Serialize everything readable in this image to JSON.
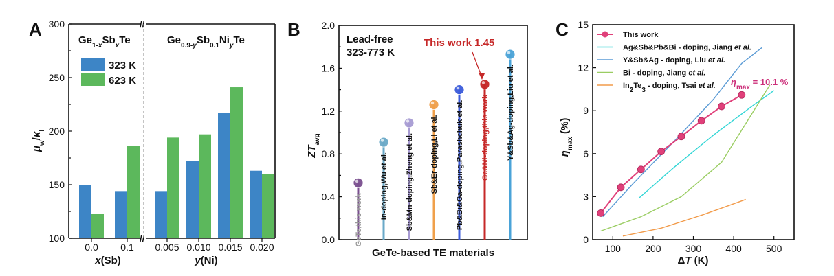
{
  "chart_data": [
    {
      "panel": "A",
      "type": "bar",
      "ylabel": "μw/κl",
      "ylim": [
        100,
        300
      ],
      "yticks": [
        100,
        150,
        200,
        250,
        300
      ],
      "group_titles": [
        "Ge1-xSbxTe",
        "Ge0.9-ySb0.1NiyTe"
      ],
      "xlabels": [
        "x(Sb)",
        "y(Ni)"
      ],
      "categories": [
        "0.0",
        "0.1",
        "0.005",
        "0.010",
        "0.015",
        "0.020"
      ],
      "series": [
        {
          "name": "323 K",
          "color": "#3d85c6",
          "values": [
            150,
            144,
            144,
            172,
            217,
            163
          ]
        },
        {
          "name": "623 K",
          "color": "#5cb85c",
          "values": [
            123,
            186,
            194,
            197,
            241,
            160
          ]
        }
      ]
    },
    {
      "panel": "B",
      "type": "bar",
      "ylabel": "ZTavg",
      "xlabel": "GeTe-based TE materials",
      "ylim": [
        0,
        2.0
      ],
      "yticks": [
        "0.0",
        "0.4",
        "0.8",
        "1.2",
        "1.6",
        "2.0"
      ],
      "annotation_left": [
        "Lead-free",
        "323-773 K"
      ],
      "highlight": "This work 1.45",
      "items": [
        {
          "label": "GeTe,this work",
          "value": 0.53,
          "color": "#7a4f8f",
          "label_color": "#999999"
        },
        {
          "label": "In-doping,Wu et al.",
          "value": 0.91,
          "color": "#6aa9c8",
          "label_color": "#111111"
        },
        {
          "label": "Sb&Mn-doping,Zheng et al.",
          "value": 1.09,
          "color": "#a79bd3",
          "label_color": "#111111"
        },
        {
          "label": "Sb&Er-doping,Li et al.",
          "value": 1.26,
          "color": "#f0a04b",
          "label_color": "#111111"
        },
        {
          "label": "Pb&Bi&Ga-doping,Parashchuk et al.",
          "value": 1.4,
          "color": "#3b5bdb",
          "label_color": "#111111"
        },
        {
          "label": "Ge&Ni-doping,this work",
          "value": 1.45,
          "color": "#c62828",
          "label_color": "#c62828"
        },
        {
          "label": "Y&Sb&Ag-doping,Liu et al.",
          "value": 1.73,
          "color": "#4aa3d8",
          "label_color": "#111111"
        }
      ]
    },
    {
      "panel": "C",
      "type": "line",
      "xlabel": "ΔT (K)",
      "ylabel": "ηmax (%)",
      "xlim": [
        50,
        550
      ],
      "ylim": [
        0,
        15
      ],
      "xticks": [
        100,
        200,
        300,
        400,
        500
      ],
      "yticks": [
        0,
        3,
        6,
        9,
        12,
        15
      ],
      "annotation": "ηmax = 10.1 %",
      "series": [
        {
          "name": "This work",
          "color": "#e0407a",
          "markers": true,
          "x": [
            70,
            120,
            170,
            220,
            270,
            320,
            370,
            420
          ],
          "y": [
            1.85,
            3.65,
            4.9,
            6.15,
            7.2,
            8.3,
            9.3,
            10.1
          ]
        },
        {
          "name": "Ag&Sb&Pb&Bi - doping, Jiang et al.",
          "color": "#33d6d6",
          "x": [
            165,
            250,
            350,
            450,
            500
          ],
          "y": [
            2.9,
            5.0,
            7.3,
            9.4,
            10.4
          ]
        },
        {
          "name": "Y&Sb&Ag - doping, Liu et al.",
          "color": "#5b9bd5",
          "x": [
            75,
            150,
            250,
            350,
            420,
            470
          ],
          "y": [
            1.6,
            3.9,
            6.8,
            9.8,
            12.3,
            13.4
          ]
        },
        {
          "name": "Bi - doping, Jiang et al.",
          "color": "#9acd62",
          "x": [
            70,
            170,
            270,
            370,
            430,
            490
          ],
          "y": [
            0.6,
            1.6,
            3.0,
            5.4,
            8.1,
            10.8
          ]
        },
        {
          "name": "In2Te3 - doping, Tsai et al.",
          "color": "#f29b4a",
          "x": [
            125,
            220,
            320,
            430
          ],
          "y": [
            0.25,
            0.8,
            1.7,
            2.8
          ]
        }
      ]
    }
  ]
}
